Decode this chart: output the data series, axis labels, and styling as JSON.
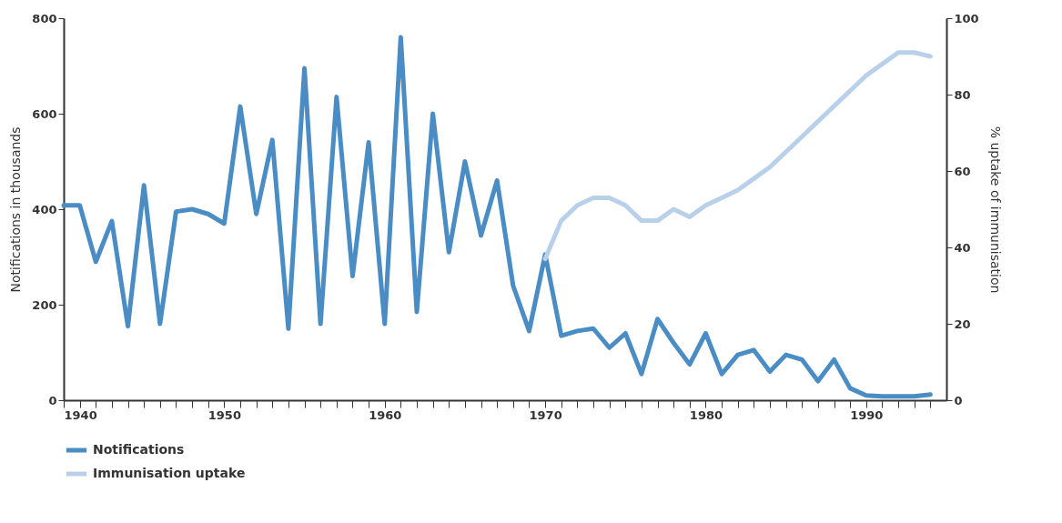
{
  "chart_data": {
    "type": "line",
    "xlabel": null,
    "ylabel": "Notifications in thousands",
    "y2label": "% uptake of immunisation",
    "x": [
      1940,
      1941,
      1942,
      1943,
      1944,
      1945,
      1946,
      1947,
      1948,
      1949,
      1950,
      1951,
      1952,
      1953,
      1954,
      1955,
      1956,
      1957,
      1958,
      1959,
      1960,
      1961,
      1962,
      1963,
      1964,
      1965,
      1966,
      1967,
      1968,
      1969,
      1970,
      1971,
      1972,
      1973,
      1974,
      1975,
      1976,
      1977,
      1978,
      1979,
      1980,
      1981,
      1982,
      1983,
      1984,
      1985,
      1986,
      1987,
      1988,
      1989,
      1990,
      1991,
      1992,
      1993,
      1994
    ],
    "series": [
      {
        "name": "Notifications",
        "color": "#4a8cc4",
        "values": [
          408,
          408,
          290,
          375,
          155,
          450,
          160,
          395,
          400,
          390,
          370,
          615,
          390,
          545,
          150,
          695,
          160,
          635,
          260,
          540,
          160,
          760,
          185,
          600,
          310,
          500,
          345,
          460,
          240,
          145,
          305,
          135,
          145,
          150,
          110,
          140,
          55,
          170,
          120,
          75,
          140,
          55,
          95,
          105,
          60,
          95,
          85,
          40,
          85,
          25,
          10,
          8,
          8,
          8,
          12
        ]
      },
      {
        "name": "Immunisation uptake",
        "color": "#b8d0ea",
        "axis": "y2",
        "x": [
          1970,
          1971,
          1972,
          1973,
          1974,
          1975,
          1976,
          1977,
          1978,
          1979,
          1980,
          1981,
          1982,
          1983,
          1984,
          1985,
          1986,
          1987,
          1988,
          1989,
          1990,
          1991,
          1992,
          1993,
          1994
        ],
        "values": [
          37,
          47,
          51,
          53,
          53,
          51,
          47,
          47,
          50,
          48,
          51,
          53,
          55,
          58,
          61,
          65,
          69,
          73,
          77,
          81,
          85,
          88,
          91,
          91,
          90
        ]
      }
    ],
    "xlim": [
      1940,
      1995
    ],
    "xticks": [
      1940,
      {
        "value": 1941,
        "label": null
      },
      {
        "value": 1942,
        "label": null
      },
      {
        "value": 1943,
        "label": null
      },
      {
        "value": 1944,
        "label": null
      },
      {
        "value": 1945,
        "label": null
      },
      {
        "value": 1946,
        "label": null
      },
      {
        "value": 1947,
        "label": null
      },
      {
        "value": 1948,
        "label": null
      },
      {
        "value": 1949,
        "label": null
      },
      1950,
      {
        "value": 1951,
        "label": null
      },
      {
        "value": 1952,
        "label": null
      },
      {
        "value": 1953,
        "label": null
      },
      {
        "value": 1954,
        "label": null
      },
      {
        "value": 1955,
        "label": null
      },
      {
        "value": 1956,
        "label": null
      },
      {
        "value": 1957,
        "label": null
      },
      {
        "value": 1958,
        "label": null
      },
      {
        "value": 1959,
        "label": null
      },
      1960,
      {
        "value": 1961,
        "label": null
      },
      {
        "value": 1962,
        "label": null
      },
      {
        "value": 1963,
        "label": null
      },
      {
        "value": 1964,
        "label": null
      },
      {
        "value": 1965,
        "label": null
      },
      {
        "value": 1966,
        "label": null
      },
      {
        "value": 1967,
        "label": null
      },
      {
        "value": 1968,
        "label": null
      },
      {
        "value": 1969,
        "label": null
      },
      1970,
      {
        "value": 1971,
        "label": null
      },
      {
        "value": 1972,
        "label": null
      },
      {
        "value": 1973,
        "label": null
      },
      {
        "value": 1974,
        "label": null
      },
      {
        "value": 1975,
        "label": null
      },
      {
        "value": 1976,
        "label": null
      },
      {
        "value": 1977,
        "label": null
      },
      {
        "value": 1978,
        "label": null
      },
      {
        "value": 1979,
        "label": null
      },
      1980,
      {
        "value": 1981,
        "label": null
      },
      {
        "value": 1982,
        "label": null
      },
      {
        "value": 1983,
        "label": null
      },
      {
        "value": 1984,
        "label": null
      },
      {
        "value": 1985,
        "label": null
      },
      {
        "value": 1986,
        "label": null
      },
      {
        "value": 1987,
        "label": null
      },
      {
        "value": 1988,
        "label": null
      },
      {
        "value": 1989,
        "label": null
      },
      1990,
      {
        "value": 1991,
        "label": null
      },
      {
        "value": 1992,
        "label": null
      },
      {
        "value": 1993,
        "label": null
      },
      {
        "value": 1994,
        "label": null
      }
    ],
    "ylim": [
      0,
      800
    ],
    "yticks": [
      0,
      200,
      400,
      600,
      800
    ],
    "y2lim": [
      0,
      100
    ],
    "y2ticks": [
      0,
      20,
      40,
      60,
      80,
      100
    ],
    "grid": false,
    "legend": "bottom left",
    "marker": "none",
    "line_style": "solid"
  }
}
